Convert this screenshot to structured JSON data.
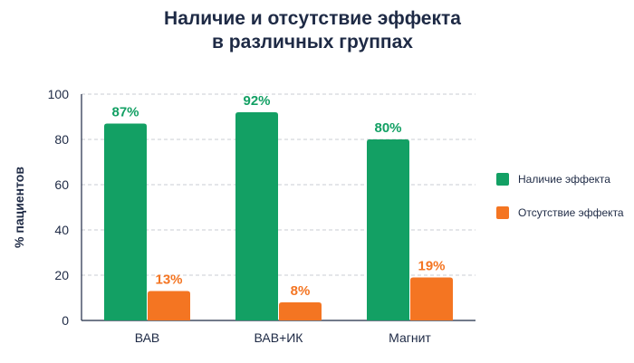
{
  "chart_data": {
    "type": "bar",
    "title_lines": [
      "Наличие и отсутствие эффекта",
      "в различных группах"
    ],
    "ylabel": "% пациентов",
    "xlabel": "",
    "categories": [
      "ВАВ",
      "ВАВ+ИК",
      "Магнит"
    ],
    "series": [
      {
        "name": "Наличие эффекта",
        "values": [
          87,
          92,
          80
        ],
        "labels": [
          "87%",
          "92%",
          "80%"
        ],
        "color": "#13a064"
      },
      {
        "name": "Отсутствие эффекта",
        "values": [
          13,
          8,
          19
        ],
        "labels": [
          "13%",
          "8%",
          "19%"
        ],
        "color": "#f47522"
      }
    ],
    "ylim": [
      0,
      100
    ],
    "yticks": [
      0,
      20,
      40,
      60,
      80,
      100
    ],
    "ytick_labels": [
      "0",
      "20",
      "40",
      "60",
      "80",
      "100"
    ],
    "grid": true,
    "grid_style": "dashed",
    "legend_position": "right"
  }
}
